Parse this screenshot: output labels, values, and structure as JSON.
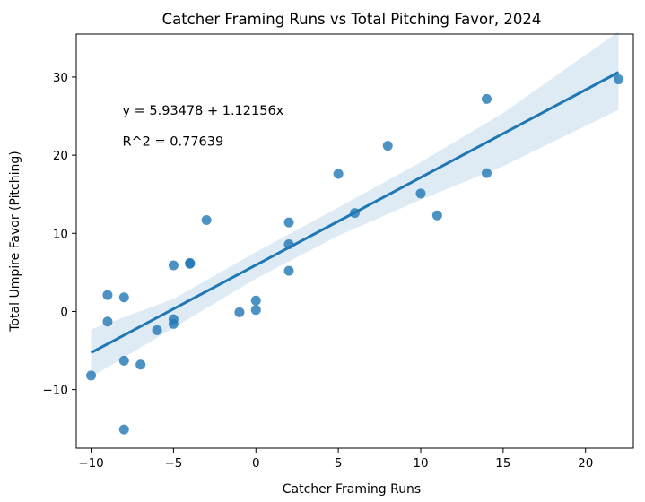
{
  "chart_data": {
    "type": "scatter",
    "title": "Catcher Framing Runs vs Total Pitching Favor, 2024",
    "xlabel": "Catcher Framing Runs",
    "ylabel": "Total Umpire Favor (Pitching)",
    "xlim": [
      -10.9,
      22.9
    ],
    "ylim": [
      -17.5,
      35.5
    ],
    "xticks": [
      -10,
      -5,
      0,
      5,
      10,
      15,
      20
    ],
    "yticks": [
      -10,
      0,
      10,
      20,
      30
    ],
    "grid": false,
    "points": [
      {
        "x": -10,
        "y": -8.2
      },
      {
        "x": -9,
        "y": 2.1
      },
      {
        "x": -9,
        "y": -1.3
      },
      {
        "x": -8,
        "y": 1.8
      },
      {
        "x": -8,
        "y": -6.3
      },
      {
        "x": -8,
        "y": -15.1
      },
      {
        "x": -7,
        "y": -6.8
      },
      {
        "x": -6,
        "y": -2.4
      },
      {
        "x": -5,
        "y": 5.9
      },
      {
        "x": -5,
        "y": -1.0
      },
      {
        "x": -5,
        "y": -1.6
      },
      {
        "x": -4,
        "y": 6.1
      },
      {
        "x": -4,
        "y": 6.2
      },
      {
        "x": -3,
        "y": 11.7
      },
      {
        "x": -1,
        "y": -0.1
      },
      {
        "x": 0,
        "y": 1.4
      },
      {
        "x": 0,
        "y": 0.2
      },
      {
        "x": 2,
        "y": 11.4
      },
      {
        "x": 2,
        "y": 8.6
      },
      {
        "x": 2,
        "y": 5.2
      },
      {
        "x": 5,
        "y": 17.6
      },
      {
        "x": 6,
        "y": 12.6
      },
      {
        "x": 8,
        "y": 21.2
      },
      {
        "x": 10,
        "y": 15.1
      },
      {
        "x": 11,
        "y": 12.3
      },
      {
        "x": 14,
        "y": 27.2
      },
      {
        "x": 14,
        "y": 17.7
      },
      {
        "x": 22,
        "y": 29.7
      }
    ],
    "regression": {
      "intercept": 5.93478,
      "slope": 1.12156,
      "x_range": [
        -10,
        22
      ],
      "ci_band": [
        {
          "x": -10,
          "lower": -8.4,
          "upper": -2.3
        },
        {
          "x": -5,
          "lower": -2.1,
          "upper": 1.6
        },
        {
          "x": 0,
          "lower": 4.2,
          "upper": 7.6
        },
        {
          "x": 5,
          "lower": 9.7,
          "upper": 13.3
        },
        {
          "x": 10,
          "lower": 14.3,
          "upper": 19.1
        },
        {
          "x": 15,
          "lower": 18.6,
          "upper": 25.4
        },
        {
          "x": 22,
          "lower": 25.8,
          "upper": 35.8
        }
      ]
    },
    "annotations": [
      {
        "text": "y = 5.93478 + 1.12156x",
        "x": -8.1,
        "y": 25.2
      },
      {
        "text": "R^2 = 0.77639",
        "x": -8.1,
        "y": 21.2
      }
    ],
    "colors": {
      "points": "#1f77b4",
      "line": "#1f77b4",
      "band": "#1f77b4"
    }
  }
}
